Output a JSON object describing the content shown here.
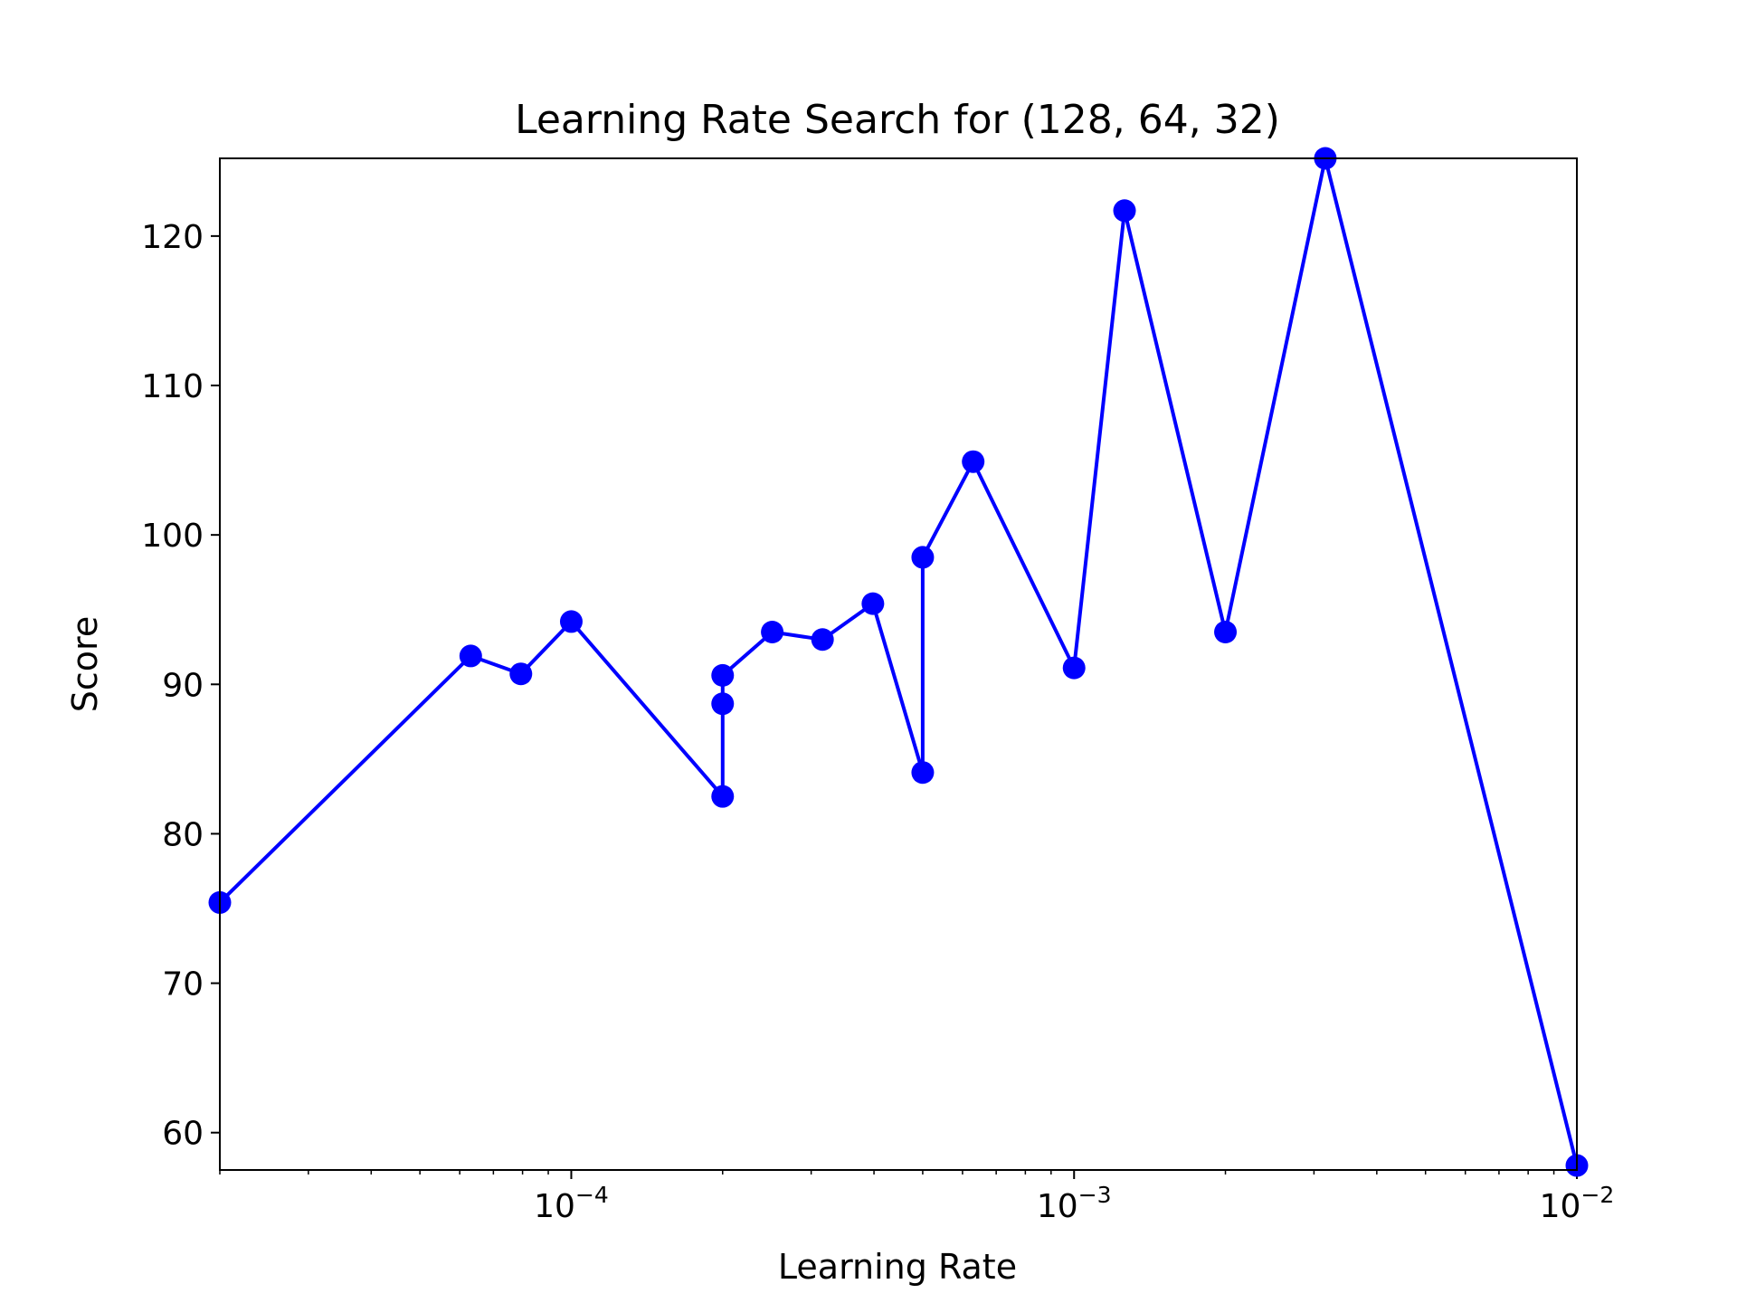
{
  "chart_data": {
    "type": "line",
    "title": "Learning Rate Search for (128, 64, 32)",
    "xlabel": "Learning Rate",
    "ylabel": "Score",
    "xscale": "log",
    "xlim": [
      2e-05,
      0.01
    ],
    "ylim": [
      57.5,
      125.2
    ],
    "grid": false,
    "legend": "none",
    "line_color": "#0000ff",
    "marker": "circle",
    "x_ticks": [
      {
        "value": 0.0001,
        "base": "10",
        "exponent": "−4"
      },
      {
        "value": 0.001,
        "base": "10",
        "exponent": "−3"
      },
      {
        "value": 0.01,
        "base": "10",
        "exponent": "−2"
      }
    ],
    "y_ticks": [
      "60",
      "70",
      "80",
      "90",
      "100",
      "110",
      "120"
    ],
    "series": [
      {
        "x": [
          2e-05,
          6.31e-05,
          7.94e-05,
          0.0001,
          0.0002,
          0.0002,
          0.0002,
          0.000251,
          0.000316,
          0.000398,
          0.0005,
          0.0005,
          0.00063,
          0.001,
          0.00126,
          0.002,
          0.00316,
          0.01
        ],
        "y": [
          75.4,
          91.9,
          90.7,
          94.2,
          82.5,
          88.7,
          90.6,
          93.5,
          93.0,
          95.4,
          84.1,
          98.5,
          104.9,
          91.1,
          121.7,
          93.5,
          125.2,
          57.8
        ]
      }
    ]
  }
}
